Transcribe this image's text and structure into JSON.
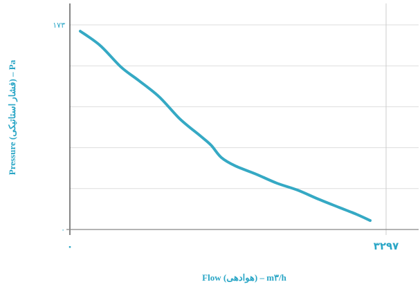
{
  "chart_data": {
    "type": "line",
    "xlabel": "Flow (هوادهی) – m۳/h",
    "ylabel": "Pressure (فشار استاتیکی) – Pa",
    "xlim": [
      0,
      3297
    ],
    "ylim": [
      0,
      173
    ],
    "x_tick_labels": [
      "۰",
      "۳۲۹۷"
    ],
    "y_tick_labels": [
      "۰",
      "۱۷۳"
    ],
    "grid": true,
    "colors": {
      "line": "#35a9c4",
      "text": "#2aa6c6",
      "grid": "#dddddd",
      "axis": "#333333"
    },
    "series": [
      {
        "x": [
          108,
          317,
          534,
          714,
          931,
          1147,
          1364,
          1472,
          1580,
          1724,
          1941,
          2157,
          2374,
          2590,
          2806,
          2987,
          3131
        ],
        "y": [
          167.7,
          155.5,
          137.3,
          126.2,
          112.2,
          93.5,
          78.9,
          71.3,
          60.8,
          53.8,
          46.8,
          39.2,
          33.3,
          25.7,
          18.7,
          12.9,
          7.6
        ]
      }
    ]
  }
}
